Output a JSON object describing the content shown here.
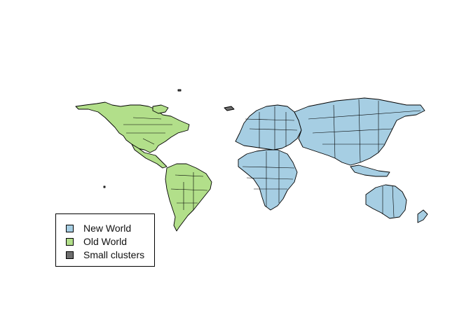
{
  "legend": {
    "items": [
      {
        "label": "New World",
        "color": "#a6cee3"
      },
      {
        "label": "Old World",
        "color": "#b2df8a"
      },
      {
        "label": "Small clusters",
        "color": "#6e6e6e"
      }
    ]
  },
  "regions": [
    {
      "name": "north-america",
      "cluster": "Old World"
    },
    {
      "name": "central-america",
      "cluster": "Old World"
    },
    {
      "name": "south-america",
      "cluster": "Old World"
    },
    {
      "name": "europe",
      "cluster": "New World"
    },
    {
      "name": "africa",
      "cluster": "New World"
    },
    {
      "name": "asia",
      "cluster": "New World"
    },
    {
      "name": "oceania",
      "cluster": "New World"
    },
    {
      "name": "islands",
      "cluster": "Small clusters"
    }
  ]
}
